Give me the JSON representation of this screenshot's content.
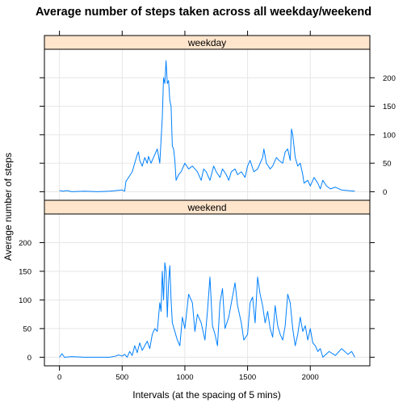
{
  "chart_data": {
    "type": "line",
    "title": "Average number of steps taken across all weekday/weekend",
    "xlabel": "Intervals (at the spacing of 5 mins)",
    "ylabel": "Average number of steps",
    "xlim": [
      -120,
      2475
    ],
    "ylim": [
      -15,
      250
    ],
    "x_ticks": [
      0,
      500,
      1000,
      1500,
      2000
    ],
    "y_ticks": [
      0,
      50,
      100,
      150,
      200
    ],
    "grid": true,
    "colors": {
      "line": "#0080ff",
      "strip": "#ffe5cc"
    },
    "panels": [
      {
        "name": "weekday",
        "y_axis_side": "right",
        "points": [
          [
            0,
            2
          ],
          [
            30,
            1
          ],
          [
            60,
            2
          ],
          [
            100,
            0
          ],
          [
            200,
            1
          ],
          [
            300,
            0
          ],
          [
            400,
            1
          ],
          [
            450,
            2
          ],
          [
            500,
            3
          ],
          [
            520,
            1
          ],
          [
            530,
            18
          ],
          [
            560,
            28
          ],
          [
            580,
            35
          ],
          [
            600,
            50
          ],
          [
            620,
            65
          ],
          [
            630,
            70
          ],
          [
            640,
            55
          ],
          [
            660,
            45
          ],
          [
            680,
            60
          ],
          [
            700,
            50
          ],
          [
            710,
            62
          ],
          [
            730,
            50
          ],
          [
            750,
            60
          ],
          [
            780,
            75
          ],
          [
            800,
            50
          ],
          [
            820,
            130
          ],
          [
            830,
            200
          ],
          [
            840,
            190
          ],
          [
            850,
            230
          ],
          [
            860,
            190
          ],
          [
            870,
            195
          ],
          [
            880,
            160
          ],
          [
            890,
            150
          ],
          [
            900,
            80
          ],
          [
            910,
            75
          ],
          [
            920,
            55
          ],
          [
            930,
            20
          ],
          [
            950,
            30
          ],
          [
            970,
            35
          ],
          [
            1000,
            50
          ],
          [
            1030,
            40
          ],
          [
            1060,
            45
          ],
          [
            1100,
            35
          ],
          [
            1130,
            20
          ],
          [
            1150,
            40
          ],
          [
            1170,
            35
          ],
          [
            1200,
            20
          ],
          [
            1230,
            45
          ],
          [
            1250,
            35
          ],
          [
            1280,
            25
          ],
          [
            1300,
            40
          ],
          [
            1330,
            30
          ],
          [
            1350,
            20
          ],
          [
            1370,
            35
          ],
          [
            1400,
            40
          ],
          [
            1420,
            30
          ],
          [
            1450,
            35
          ],
          [
            1480,
            25
          ],
          [
            1500,
            45
          ],
          [
            1520,
            55
          ],
          [
            1550,
            35
          ],
          [
            1580,
            40
          ],
          [
            1600,
            50
          ],
          [
            1620,
            60
          ],
          [
            1630,
            75
          ],
          [
            1650,
            50
          ],
          [
            1680,
            40
          ],
          [
            1700,
            45
          ],
          [
            1730,
            60
          ],
          [
            1750,
            55
          ],
          [
            1780,
            50
          ],
          [
            1800,
            70
          ],
          [
            1820,
            75
          ],
          [
            1840,
            55
          ],
          [
            1850,
            110
          ],
          [
            1860,
            100
          ],
          [
            1870,
            80
          ],
          [
            1880,
            60
          ],
          [
            1900,
            45
          ],
          [
            1920,
            50
          ],
          [
            1940,
            30
          ],
          [
            1950,
            15
          ],
          [
            1980,
            20
          ],
          [
            2000,
            10
          ],
          [
            2030,
            25
          ],
          [
            2060,
            15
          ],
          [
            2080,
            5
          ],
          [
            2100,
            20
          ],
          [
            2130,
            10
          ],
          [
            2160,
            5
          ],
          [
            2200,
            8
          ],
          [
            2250,
            3
          ],
          [
            2300,
            2
          ],
          [
            2355,
            1
          ]
        ]
      },
      {
        "name": "weekend",
        "y_axis_side": "left",
        "points": [
          [
            0,
            0
          ],
          [
            20,
            6
          ],
          [
            40,
            0
          ],
          [
            100,
            1
          ],
          [
            200,
            0
          ],
          [
            300,
            0
          ],
          [
            400,
            0
          ],
          [
            450,
            2
          ],
          [
            470,
            4
          ],
          [
            500,
            2
          ],
          [
            520,
            5
          ],
          [
            540,
            0
          ],
          [
            560,
            10
          ],
          [
            580,
            3
          ],
          [
            600,
            20
          ],
          [
            620,
            8
          ],
          [
            640,
            25
          ],
          [
            660,
            12
          ],
          [
            680,
            20
          ],
          [
            700,
            28
          ],
          [
            720,
            15
          ],
          [
            740,
            40
          ],
          [
            760,
            50
          ],
          [
            780,
            45
          ],
          [
            800,
            95
          ],
          [
            810,
            80
          ],
          [
            820,
            150
          ],
          [
            830,
            100
          ],
          [
            840,
            165
          ],
          [
            850,
            150
          ],
          [
            860,
            70
          ],
          [
            870,
            130
          ],
          [
            880,
            160
          ],
          [
            890,
            100
          ],
          [
            900,
            60
          ],
          [
            920,
            45
          ],
          [
            940,
            30
          ],
          [
            960,
            20
          ],
          [
            980,
            70
          ],
          [
            1000,
            50
          ],
          [
            1030,
            110
          ],
          [
            1060,
            95
          ],
          [
            1080,
            45
          ],
          [
            1100,
            75
          ],
          [
            1130,
            60
          ],
          [
            1160,
            30
          ],
          [
            1180,
            80
          ],
          [
            1200,
            140
          ],
          [
            1220,
            55
          ],
          [
            1240,
            40
          ],
          [
            1260,
            20
          ],
          [
            1280,
            95
          ],
          [
            1300,
            120
          ],
          [
            1320,
            50
          ],
          [
            1350,
            70
          ],
          [
            1400,
            130
          ],
          [
            1420,
            90
          ],
          [
            1450,
            60
          ],
          [
            1470,
            30
          ],
          [
            1500,
            40
          ],
          [
            1520,
            95
          ],
          [
            1540,
            105
          ],
          [
            1560,
            60
          ],
          [
            1580,
            140
          ],
          [
            1600,
            110
          ],
          [
            1620,
            90
          ],
          [
            1640,
            60
          ],
          [
            1660,
            80
          ],
          [
            1680,
            50
          ],
          [
            1700,
            35
          ],
          [
            1720,
            90
          ],
          [
            1740,
            55
          ],
          [
            1760,
            40
          ],
          [
            1780,
            30
          ],
          [
            1800,
            55
          ],
          [
            1820,
            110
          ],
          [
            1840,
            95
          ],
          [
            1860,
            50
          ],
          [
            1880,
            20
          ],
          [
            1900,
            40
          ],
          [
            1920,
            70
          ],
          [
            1940,
            45
          ],
          [
            1960,
            55
          ],
          [
            1980,
            30
          ],
          [
            2000,
            50
          ],
          [
            2020,
            25
          ],
          [
            2040,
            20
          ],
          [
            2060,
            10
          ],
          [
            2080,
            15
          ],
          [
            2100,
            0
          ],
          [
            2150,
            10
          ],
          [
            2200,
            3
          ],
          [
            2250,
            15
          ],
          [
            2300,
            5
          ],
          [
            2330,
            10
          ],
          [
            2355,
            0
          ]
        ]
      }
    ]
  }
}
